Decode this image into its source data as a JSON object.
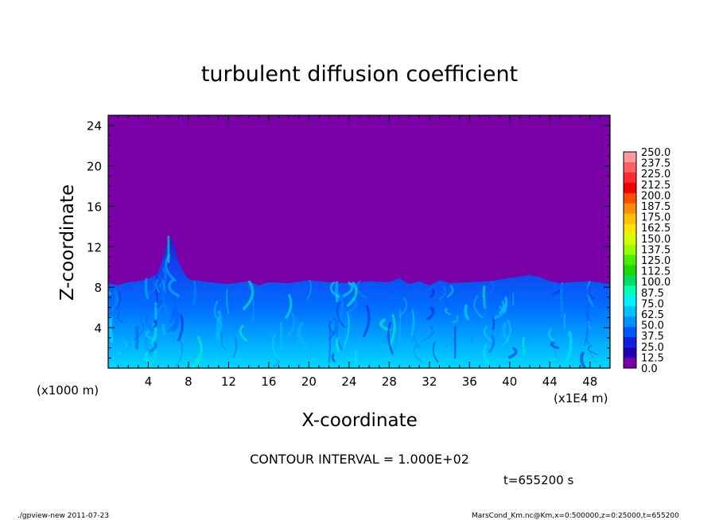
{
  "chart_data": {
    "type": "heatmap",
    "title": "turbulent diffusion coefficient",
    "xlabel": "X-coordinate",
    "ylabel": "Z-coordinate",
    "x_units_left": "(x1000 m)",
    "x_units_right": "(x1E4 m)",
    "xlim": [
      0,
      50
    ],
    "ylim": [
      0,
      25
    ],
    "xticks": [
      4,
      8,
      12,
      16,
      20,
      24,
      28,
      32,
      36,
      40,
      44,
      48
    ],
    "yticks": [
      4,
      8,
      12,
      16,
      20,
      24
    ],
    "boundary_layer_top": {
      "x": [
        0,
        1,
        2,
        3,
        4,
        5,
        5.5,
        6,
        6.5,
        7,
        7.5,
        8,
        10,
        12,
        14,
        15,
        16,
        18,
        20,
        22,
        24,
        26,
        28,
        29,
        30,
        31,
        32,
        33,
        34,
        36,
        38,
        40,
        42,
        43,
        44,
        45,
        46,
        48,
        50
      ],
      "z": [
        8.4,
        8.2,
        8.5,
        8.6,
        8.8,
        9.4,
        11,
        13,
        12.5,
        10.5,
        9.5,
        8.8,
        8.5,
        8.3,
        8.6,
        8.2,
        8.5,
        8.4,
        8.7,
        8.5,
        8.4,
        8.6,
        8.5,
        8.9,
        8.3,
        8.6,
        8.2,
        8.7,
        8.4,
        8.5,
        8.6,
        8.9,
        9.2,
        9.0,
        8.6,
        8.4,
        8.5,
        8.6,
        8.3
      ]
    },
    "colorbar": {
      "levels": [
        "250.0",
        "237.5",
        "225.0",
        "212.5",
        "200.0",
        "187.5",
        "175.0",
        "162.5",
        "150.0",
        "137.5",
        "125.0",
        "112.5",
        "100.0",
        "87.5",
        "75.0",
        "62.5",
        "50.0",
        "37.5",
        "25.0",
        "12.5",
        "0.0"
      ],
      "colors": [
        "#ff9a9a",
        "#ff6060",
        "#ff2a2a",
        "#f40000",
        "#ff5000",
        "#ff8c00",
        "#ffc000",
        "#ffe400",
        "#d4ff00",
        "#9cff00",
        "#48f000",
        "#1cd800",
        "#00e060",
        "#00ffb4",
        "#00f0ff",
        "#00c4ff",
        "#0090ff",
        "#0058ff",
        "#1020e0",
        "#2000b0",
        "#7a00a8"
      ]
    },
    "background_color": "#7a00a8"
  },
  "contour_note": "CONTOUR INTERVAL = 1.000E+02",
  "time_label": "t=655200 s",
  "footer_left": "./gpview-new   2011-07-23",
  "footer_right": "MarsCond_Km.nc@Km,x=0:500000,z=0:25000,t=655200"
}
